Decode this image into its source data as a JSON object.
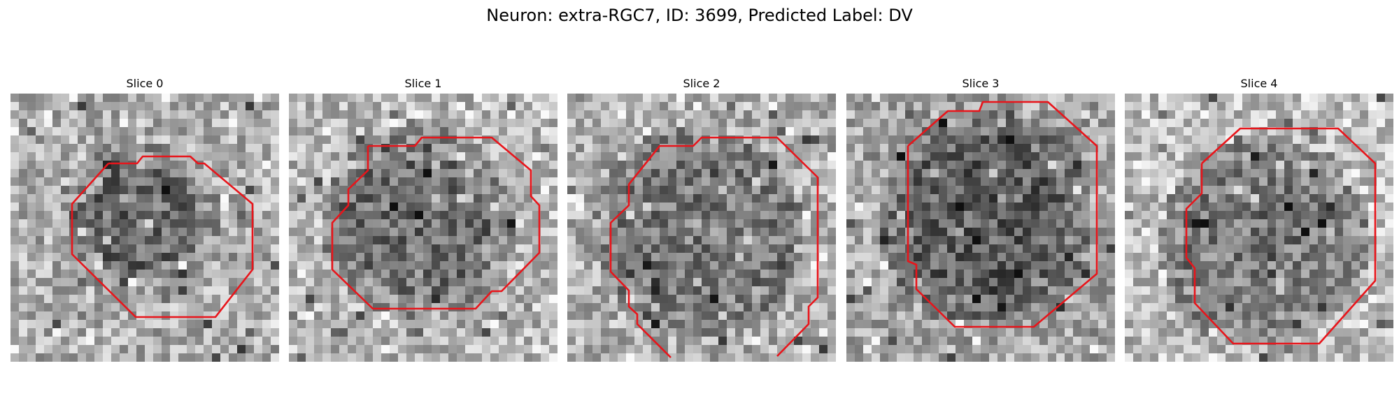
{
  "figure": {
    "title": "Neuron: extra-RGC7, ID: 3699, Predicted Label: DV"
  },
  "colors": {
    "contour": "#e8151b",
    "background": "#ffffff"
  },
  "panels": [
    {
      "title": "Slice 0"
    },
    {
      "title": "Slice 1"
    },
    {
      "title": "Slice 2"
    },
    {
      "title": "Slice 3"
    },
    {
      "title": "Slice 4"
    }
  ]
}
